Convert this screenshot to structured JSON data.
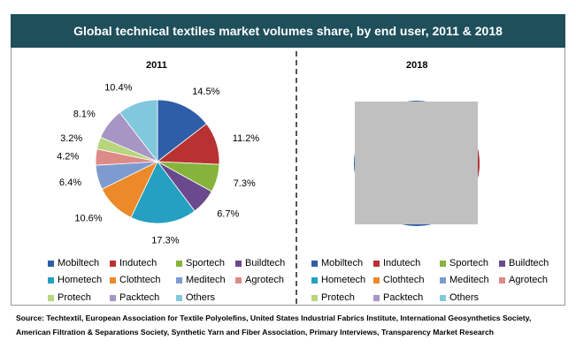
{
  "title": "Global technical textiles market volumes share, by end user, 2011 & 2018",
  "source": "Source: Techtextil, European Association for Textile Polyolefins, United States Industrial Fabrics Institute, International Geosynthetics Society, American Filtration & Separations Society, Synthetic Yarn and Fiber Association, Primary Interviews, Transparency Market Research",
  "chart_data": [
    {
      "type": "pie",
      "title": "2011",
      "categories": [
        "Mobiltech",
        "Indutech",
        "Sportech",
        "Buildtech",
        "Hometech",
        "Clothtech",
        "Meditech",
        "Agrotech",
        "Protech",
        "Packtech",
        "Others"
      ],
      "values": [
        14.5,
        11.2,
        7.3,
        6.7,
        17.3,
        10.6,
        6.4,
        4.2,
        3.2,
        8.1,
        10.4
      ],
      "data_labels": [
        "14.5%",
        "11.2%",
        "7.3%",
        "6.7%",
        "17.3%",
        "10.6%",
        "6.4%",
        "4.2%",
        "3.2%",
        "8.1%",
        "10.4%"
      ],
      "colors": [
        "#2e5ea8",
        "#b83232",
        "#86b43a",
        "#6a4a8c",
        "#25a0c0",
        "#ec8a2a",
        "#7d9bcf",
        "#de8a87",
        "#b7d67d",
        "#a795c4",
        "#82c8dd"
      ],
      "legend": "bottom"
    },
    {
      "type": "pie",
      "title": "2018",
      "categories": [
        "Mobiltech",
        "Indutech",
        "Sportech",
        "Buildtech",
        "Hometech",
        "Clothtech",
        "Meditech",
        "Agrotech",
        "Protech",
        "Packtech",
        "Others"
      ],
      "colors": [
        "#2e5ea8",
        "#b83232",
        "#86b43a",
        "#6a4a8c",
        "#25a0c0",
        "#ec8a2a",
        "#7d9bcf",
        "#de8a87",
        "#b7d67d",
        "#a795c4",
        "#82c8dd"
      ],
      "legend": "bottom"
    }
  ]
}
